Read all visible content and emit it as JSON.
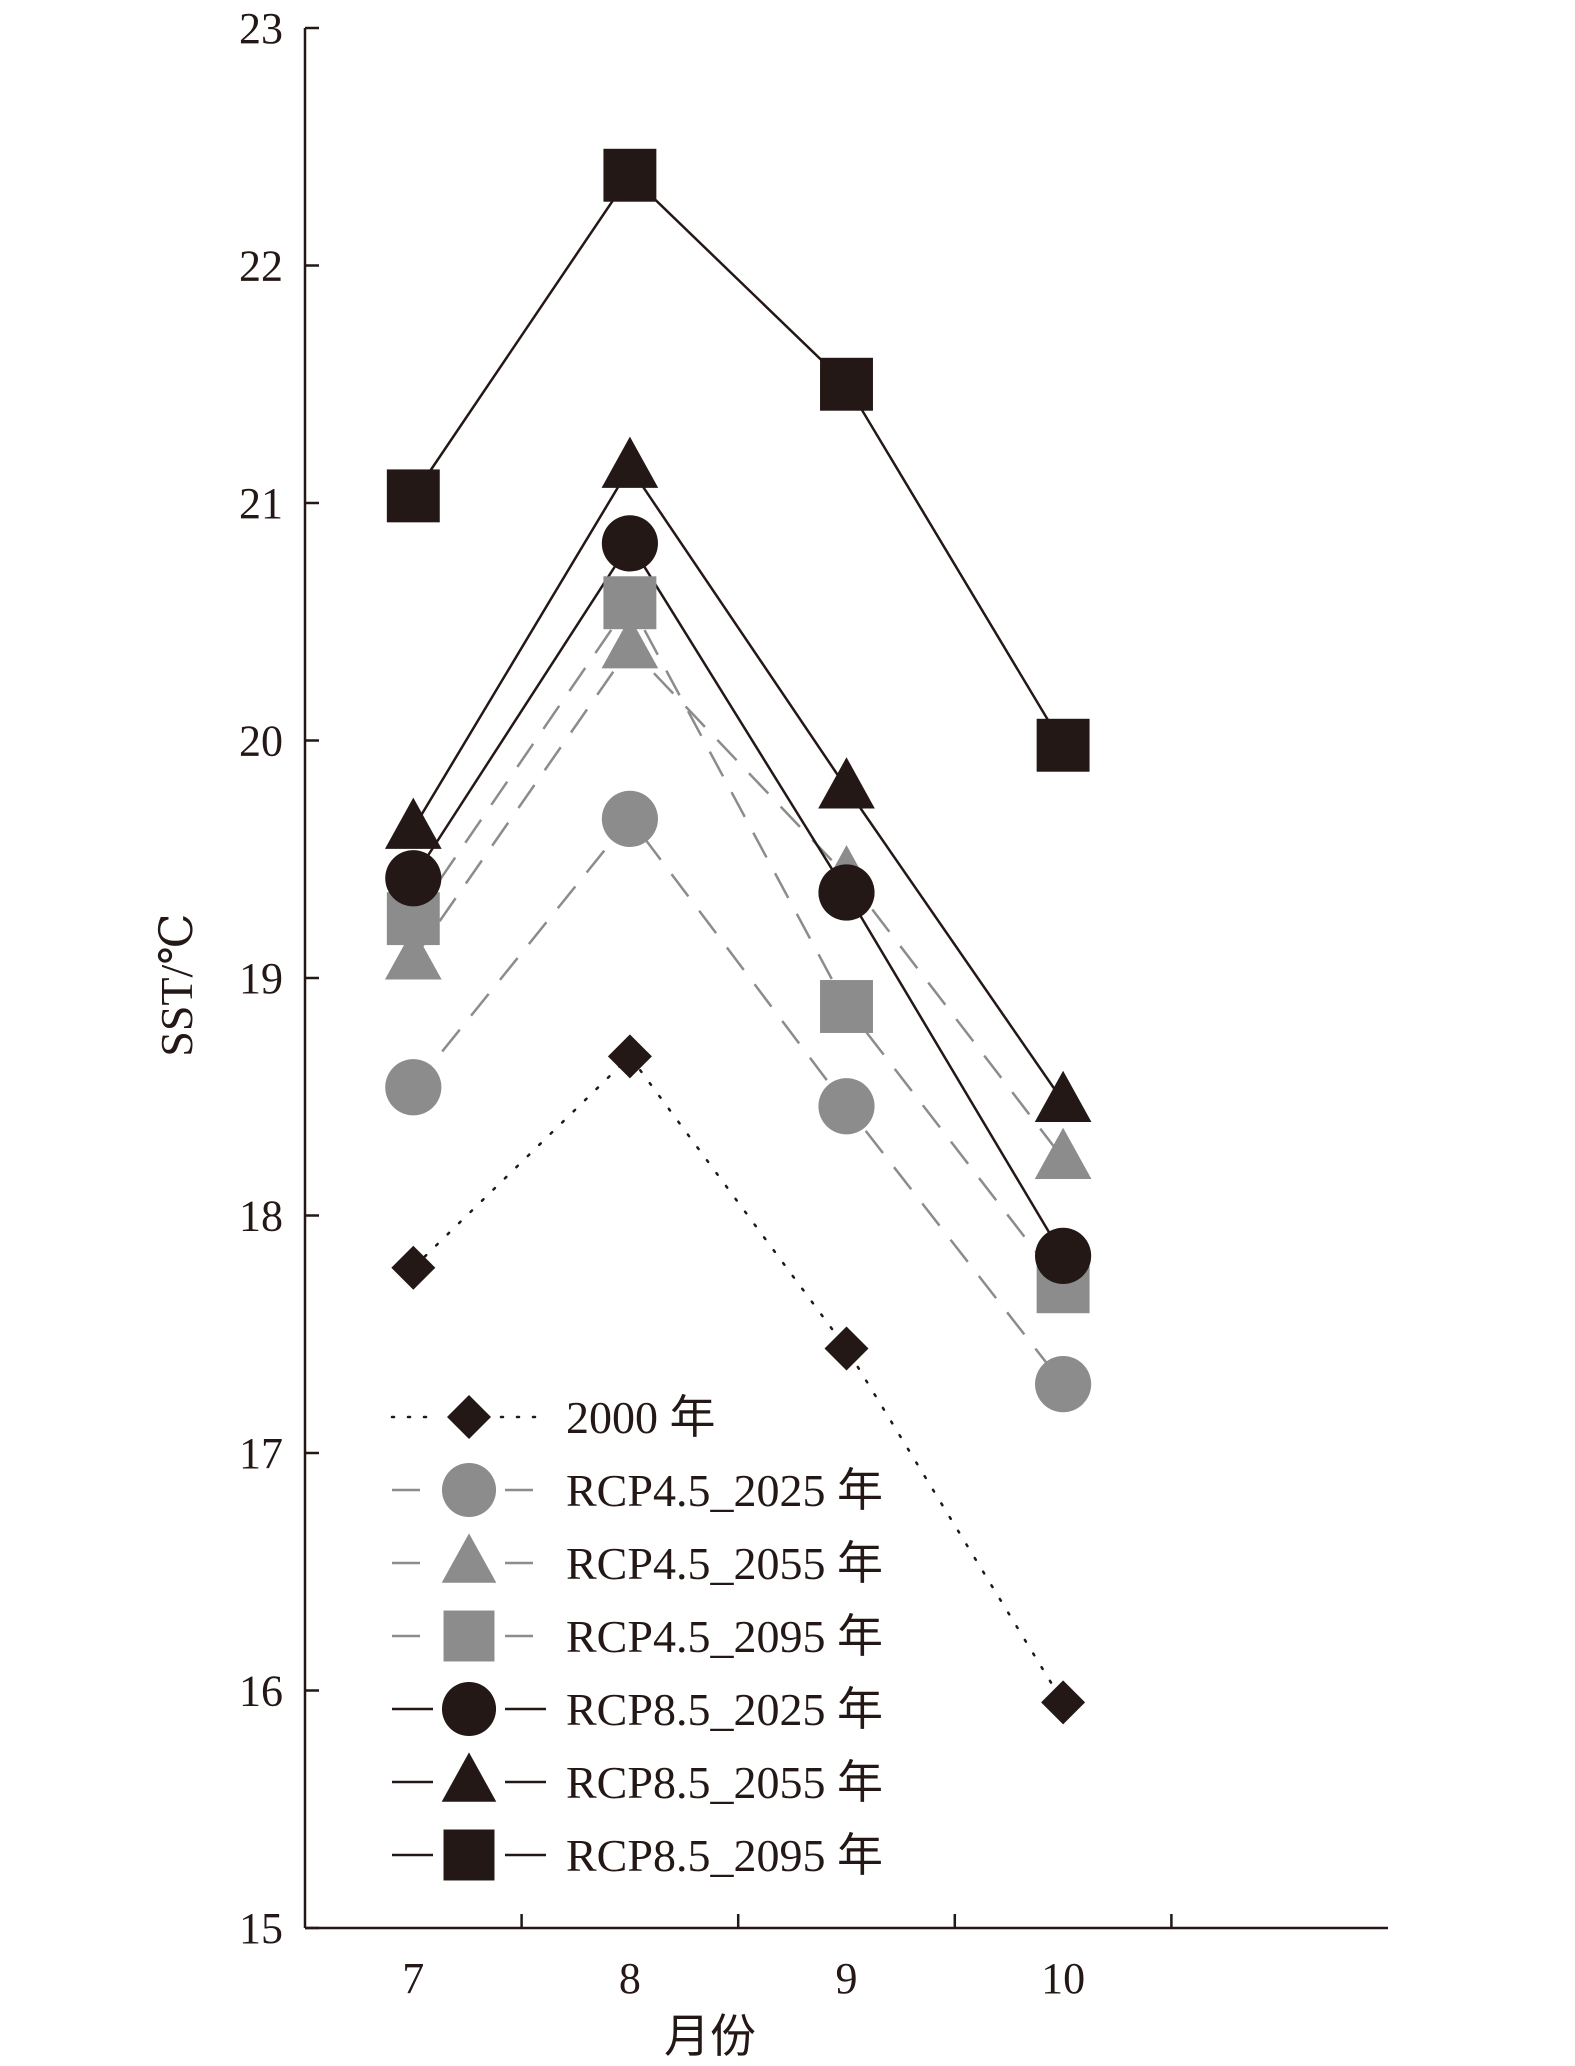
{
  "chart_data": {
    "type": "line",
    "title": "",
    "xlabel": "月份",
    "ylabel": "SST/℃",
    "categories": [
      "7",
      "8",
      "9",
      "10"
    ],
    "ylim": [
      15,
      23
    ],
    "yticks": [
      "15",
      "16",
      "17",
      "18",
      "19",
      "20",
      "21",
      "22",
      "23"
    ],
    "grid": false,
    "legend_position": "bottom-left",
    "series": [
      {
        "name": "2000 年",
        "values": [
          17.78,
          18.67,
          17.44,
          15.95
        ],
        "marker": "diamond",
        "line": "dotted",
        "color": "#231815"
      },
      {
        "name": "RCP4.5_2025 年",
        "values": [
          18.54,
          19.67,
          18.46,
          17.29
        ],
        "marker": "circle",
        "line": "dashed",
        "color": "#8c8c8c"
      },
      {
        "name": "RCP4.5_2055 年",
        "values": [
          19.08,
          20.39,
          19.43,
          18.24
        ],
        "marker": "triangle",
        "line": "dashed",
        "color": "#8c8c8c"
      },
      {
        "name": "RCP4.5_2095 年",
        "values": [
          19.25,
          20.58,
          18.88,
          17.7
        ],
        "marker": "square",
        "line": "dashed",
        "color": "#8c8c8c"
      },
      {
        "name": "RCP8.5_2025 年",
        "values": [
          19.42,
          20.83,
          19.36,
          17.83
        ],
        "marker": "circle",
        "line": "solid",
        "color": "#231815"
      },
      {
        "name": "RCP8.5_2055 年",
        "values": [
          19.63,
          21.15,
          19.8,
          18.48
        ],
        "marker": "triangle",
        "line": "solid",
        "color": "#231815"
      },
      {
        "name": "RCP8.5_2095 年",
        "values": [
          21.03,
          22.38,
          21.5,
          19.98
        ],
        "marker": "square",
        "line": "solid",
        "color": "#231815"
      }
    ]
  }
}
